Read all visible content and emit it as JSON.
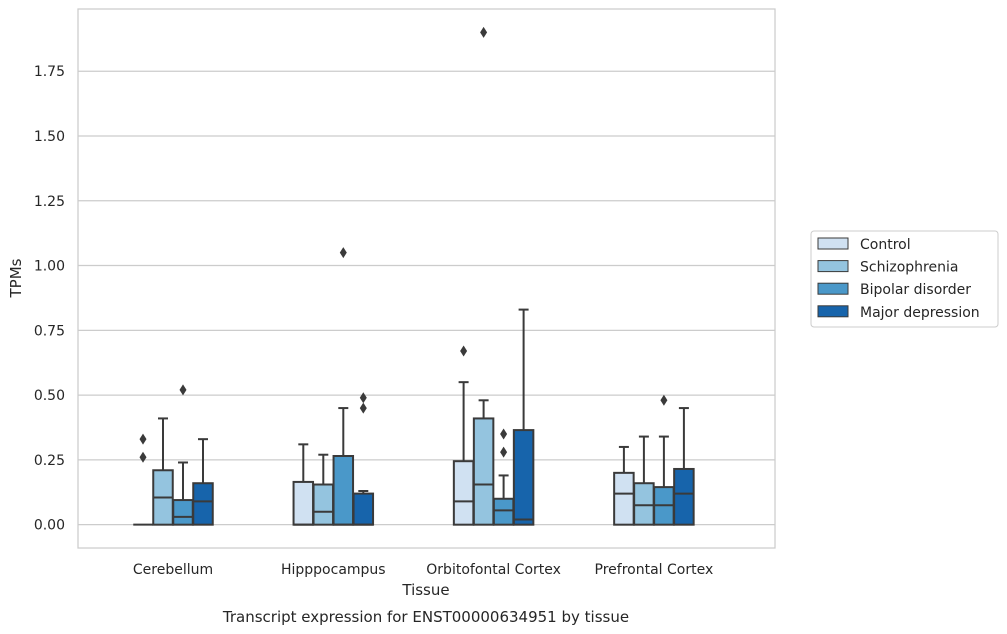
{
  "chart_data": {
    "type": "box",
    "title": "Transcript expression for ENST00000634951 by tissue",
    "xlabel": "Tissue",
    "ylabel": "TPMs",
    "ylim": [
      -0.09,
      1.99
    ],
    "yticks": [
      0.0,
      0.25,
      0.5,
      0.75,
      1.0,
      1.25,
      1.5,
      1.75
    ],
    "ytick_labels": [
      "0.00",
      "0.25",
      "0.50",
      "0.75",
      "1.00",
      "1.25",
      "1.50",
      "1.75"
    ],
    "grid": "horizontal",
    "legend_position": "right",
    "categories": [
      "Cerebellum",
      "Hipppocampus",
      "Orbitofontal Cortex",
      "Prefrontal Cortex"
    ],
    "series": [
      {
        "name": "Control",
        "color": "#d0e1f2",
        "boxes": [
          {
            "q1": 0.0,
            "median": 0.0,
            "q3": 0.0,
            "whisker_low": 0.0,
            "whisker_high": 0.0,
            "outliers": [
              0.33,
              0.26
            ]
          },
          {
            "q1": 0.0,
            "median": 0.0,
            "q3": 0.165,
            "whisker_low": 0.0,
            "whisker_high": 0.31,
            "outliers": []
          },
          {
            "q1": 0.0,
            "median": 0.09,
            "q3": 0.245,
            "whisker_low": 0.0,
            "whisker_high": 0.55,
            "outliers": [
              0.67
            ]
          },
          {
            "q1": 0.0,
            "median": 0.12,
            "q3": 0.2,
            "whisker_low": 0.0,
            "whisker_high": 0.3,
            "outliers": []
          }
        ]
      },
      {
        "name": "Schizophrenia",
        "color": "#94c4df",
        "boxes": [
          {
            "q1": 0.0,
            "median": 0.105,
            "q3": 0.21,
            "whisker_low": 0.0,
            "whisker_high": 0.41,
            "outliers": []
          },
          {
            "q1": 0.0,
            "median": 0.05,
            "q3": 0.155,
            "whisker_low": 0.0,
            "whisker_high": 0.27,
            "outliers": []
          },
          {
            "q1": 0.0,
            "median": 0.155,
            "q3": 0.41,
            "whisker_low": 0.0,
            "whisker_high": 0.48,
            "outliers": [
              1.9
            ]
          },
          {
            "q1": 0.0,
            "median": 0.075,
            "q3": 0.16,
            "whisker_low": 0.0,
            "whisker_high": 0.34,
            "outliers": []
          }
        ]
      },
      {
        "name": "Bipolar disorder",
        "color": "#4a98c9",
        "boxes": [
          {
            "q1": 0.0,
            "median": 0.03,
            "q3": 0.095,
            "whisker_low": 0.0,
            "whisker_high": 0.24,
            "outliers": [
              0.52
            ]
          },
          {
            "q1": 0.0,
            "median": 0.0,
            "q3": 0.265,
            "whisker_low": 0.0,
            "whisker_high": 0.45,
            "outliers": [
              1.05
            ]
          },
          {
            "q1": 0.0,
            "median": 0.055,
            "q3": 0.1,
            "whisker_low": 0.0,
            "whisker_high": 0.19,
            "outliers": [
              0.35,
              0.28
            ]
          },
          {
            "q1": 0.0,
            "median": 0.075,
            "q3": 0.145,
            "whisker_low": 0.0,
            "whisker_high": 0.34,
            "outliers": [
              0.48
            ]
          }
        ]
      },
      {
        "name": "Major depression",
        "color": "#1764ab",
        "boxes": [
          {
            "q1": 0.0,
            "median": 0.09,
            "q3": 0.16,
            "whisker_low": 0.0,
            "whisker_high": 0.33,
            "outliers": []
          },
          {
            "q1": 0.0,
            "median": 0.0,
            "q3": 0.12,
            "whisker_low": 0.0,
            "whisker_high": 0.13,
            "outliers": [
              0.49,
              0.45
            ]
          },
          {
            "q1": 0.0,
            "median": 0.02,
            "q3": 0.365,
            "whisker_low": 0.0,
            "whisker_high": 0.83,
            "outliers": []
          },
          {
            "q1": 0.0,
            "median": 0.12,
            "q3": 0.215,
            "whisker_low": 0.0,
            "whisker_high": 0.45,
            "outliers": []
          }
        ]
      }
    ]
  }
}
